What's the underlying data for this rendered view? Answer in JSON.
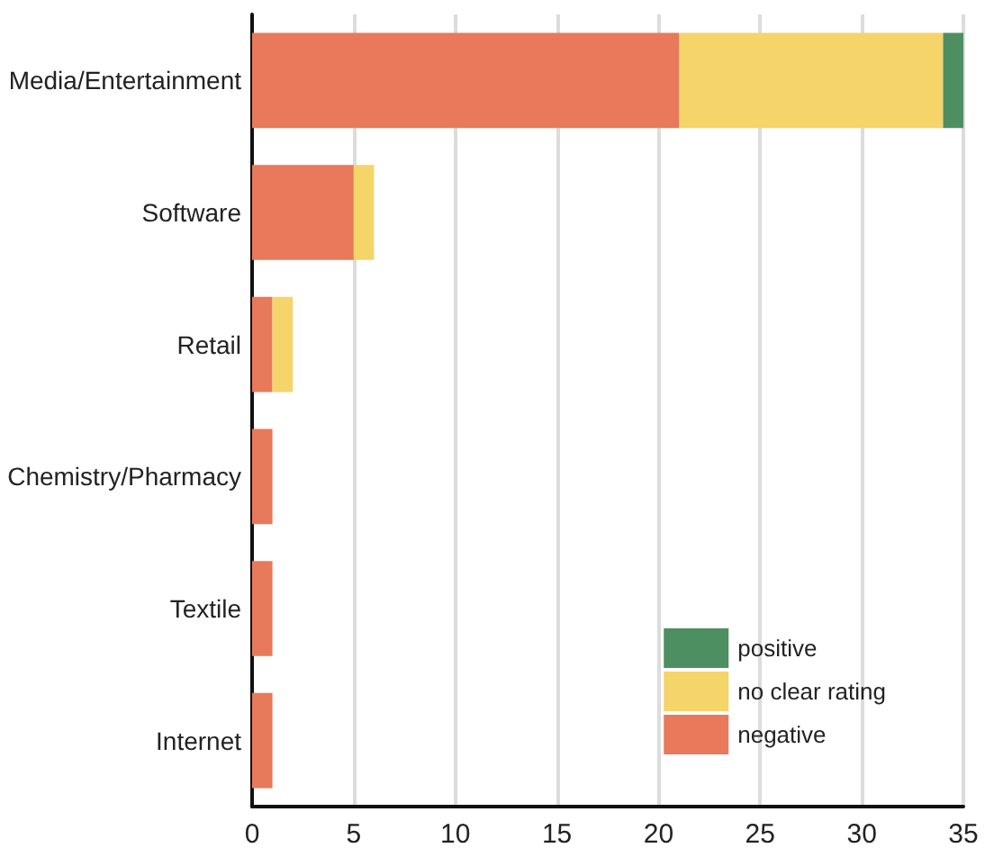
{
  "chart_data": {
    "type": "bar",
    "orientation": "horizontal",
    "stacked": true,
    "categories": [
      "Media/Entertainment",
      "Software",
      "Retail",
      "Chemistry/Pharmacy",
      "Textile",
      "Internet"
    ],
    "series": [
      {
        "name": "negative",
        "color": "#e8795a",
        "values": [
          21,
          5,
          1,
          1,
          1,
          1
        ]
      },
      {
        "name": "no clear rating",
        "color": "#f5d46a",
        "values": [
          13,
          1,
          1,
          null,
          null,
          null
        ]
      },
      {
        "name": "positive",
        "color": "#4e8f62",
        "values": [
          1,
          null,
          null,
          null,
          null,
          null
        ]
      }
    ],
    "xlim": [
      0,
      35
    ],
    "xticks": [
      0,
      5,
      10,
      15,
      20,
      25,
      30,
      35
    ],
    "grid": "x",
    "legend": "bottom right"
  }
}
